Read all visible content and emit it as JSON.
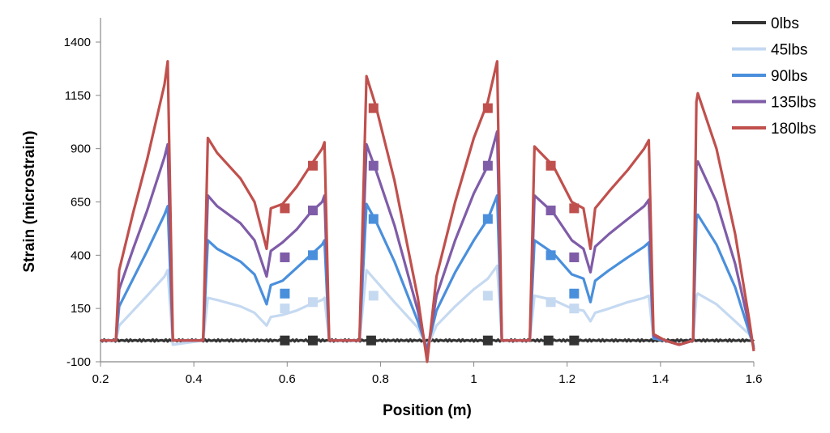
{
  "chart_data": {
    "type": "line",
    "title": "",
    "xlabel": "Position (m)",
    "ylabel": "Strain (microstrain)",
    "xlim": [
      0.2,
      1.6
    ],
    "ylim": [
      -100,
      1400
    ],
    "xticks": [
      "0.2",
      "0.4",
      "0.6",
      "0.8",
      "1",
      "1.2",
      "1.4",
      "1.6"
    ],
    "yticks": [
      "-100",
      "150",
      "400",
      "650",
      "900",
      "1150",
      "1400"
    ],
    "grid": false,
    "legend_position": "top-right",
    "x": [
      0.2,
      0.233,
      0.24,
      0.27,
      0.3,
      0.337,
      0.344,
      0.355,
      0.42,
      0.43,
      0.45,
      0.5,
      0.53,
      0.556,
      0.565,
      0.59,
      0.62,
      0.65,
      0.675,
      0.68,
      0.69,
      0.755,
      0.77,
      0.79,
      0.83,
      0.88,
      0.9,
      0.92,
      0.96,
      1.0,
      1.03,
      1.05,
      1.06,
      1.12,
      1.13,
      1.17,
      1.21,
      1.235,
      1.25,
      1.26,
      1.29,
      1.33,
      1.365,
      1.375,
      1.385,
      1.41,
      1.44,
      1.47,
      1.477,
      1.48,
      1.52,
      1.56,
      1.59,
      1.6
    ],
    "series": [
      {
        "name": "0lbs",
        "color": "#333333",
        "values": [
          0,
          0,
          0,
          0,
          0,
          0,
          0,
          0,
          0,
          0,
          0,
          0,
          0,
          0,
          0,
          0,
          0,
          0,
          0,
          0,
          0,
          0,
          0,
          0,
          0,
          0,
          0,
          0,
          0,
          0,
          0,
          0,
          0,
          0,
          0,
          0,
          0,
          0,
          0,
          0,
          0,
          0,
          0,
          0,
          0,
          0,
          0,
          0,
          0,
          0,
          0,
          0,
          0,
          0
        ],
        "markers": [
          [
            0.595,
            0
          ],
          [
            0.655,
            0
          ],
          [
            0.78,
            0
          ],
          [
            1.03,
            0
          ],
          [
            1.16,
            0
          ],
          [
            1.215,
            0
          ]
        ]
      },
      {
        "name": "45lbs",
        "color": "#c5d9f1",
        "values": [
          0,
          0,
          70,
          140,
          210,
          300,
          330,
          -20,
          0,
          200,
          190,
          160,
          130,
          70,
          110,
          120,
          140,
          170,
          190,
          200,
          0,
          0,
          330,
          280,
          180,
          60,
          -30,
          70,
          160,
          240,
          290,
          350,
          0,
          0,
          210,
          190,
          150,
          140,
          90,
          130,
          150,
          180,
          200,
          210,
          10,
          0,
          -20,
          0,
          210,
          220,
          170,
          90,
          30,
          -20
        ],
        "markers": [
          [
            0.595,
            150
          ],
          [
            0.655,
            180
          ],
          [
            0.785,
            210
          ],
          [
            1.03,
            210
          ],
          [
            1.165,
            180
          ],
          [
            1.215,
            150
          ]
        ]
      },
      {
        "name": "90lbs",
        "color": "#4a8fdc",
        "values": [
          0,
          0,
          160,
          290,
          420,
          590,
          630,
          0,
          0,
          470,
          430,
          370,
          310,
          170,
          260,
          280,
          340,
          400,
          450,
          470,
          0,
          0,
          640,
          560,
          370,
          90,
          -40,
          140,
          320,
          470,
          570,
          680,
          0,
          0,
          470,
          410,
          310,
          290,
          180,
          280,
          330,
          390,
          440,
          460,
          10,
          0,
          -20,
          0,
          570,
          590,
          450,
          250,
          40,
          -30
        ],
        "markers": [
          [
            0.595,
            220
          ],
          [
            0.655,
            400
          ],
          [
            0.785,
            570
          ],
          [
            1.03,
            570
          ],
          [
            1.165,
            400
          ],
          [
            1.215,
            220
          ]
        ]
      },
      {
        "name": "135lbs",
        "color": "#7f5ca8",
        "values": [
          0,
          0,
          240,
          430,
          610,
          860,
          920,
          0,
          0,
          680,
          630,
          550,
          470,
          300,
          420,
          460,
          520,
          600,
          650,
          680,
          0,
          0,
          920,
          800,
          540,
          140,
          -60,
          210,
          470,
          690,
          820,
          980,
          0,
          0,
          680,
          600,
          470,
          430,
          320,
          440,
          500,
          570,
          630,
          660,
          20,
          0,
          -20,
          0,
          820,
          840,
          650,
          360,
          70,
          -40
        ],
        "markers": [
          [
            0.595,
            390
          ],
          [
            0.655,
            610
          ],
          [
            0.785,
            820
          ],
          [
            1.03,
            820
          ],
          [
            1.165,
            610
          ],
          [
            1.215,
            390
          ]
        ]
      },
      {
        "name": "180lbs",
        "color": "#c0504d",
        "values": [
          0,
          0,
          330,
          600,
          850,
          1200,
          1310,
          0,
          0,
          950,
          880,
          760,
          650,
          430,
          620,
          640,
          720,
          820,
          900,
          930,
          0,
          0,
          1240,
          1100,
          750,
          200,
          -100,
          300,
          650,
          950,
          1120,
          1310,
          0,
          0,
          910,
          820,
          650,
          620,
          430,
          620,
          700,
          800,
          900,
          940,
          30,
          0,
          -20,
          0,
          1120,
          1160,
          900,
          500,
          100,
          -50
        ],
        "markers": [
          [
            0.595,
            620
          ],
          [
            0.655,
            820
          ],
          [
            0.785,
            1090
          ],
          [
            1.03,
            1090
          ],
          [
            1.165,
            820
          ],
          [
            1.215,
            620
          ]
        ]
      }
    ]
  }
}
